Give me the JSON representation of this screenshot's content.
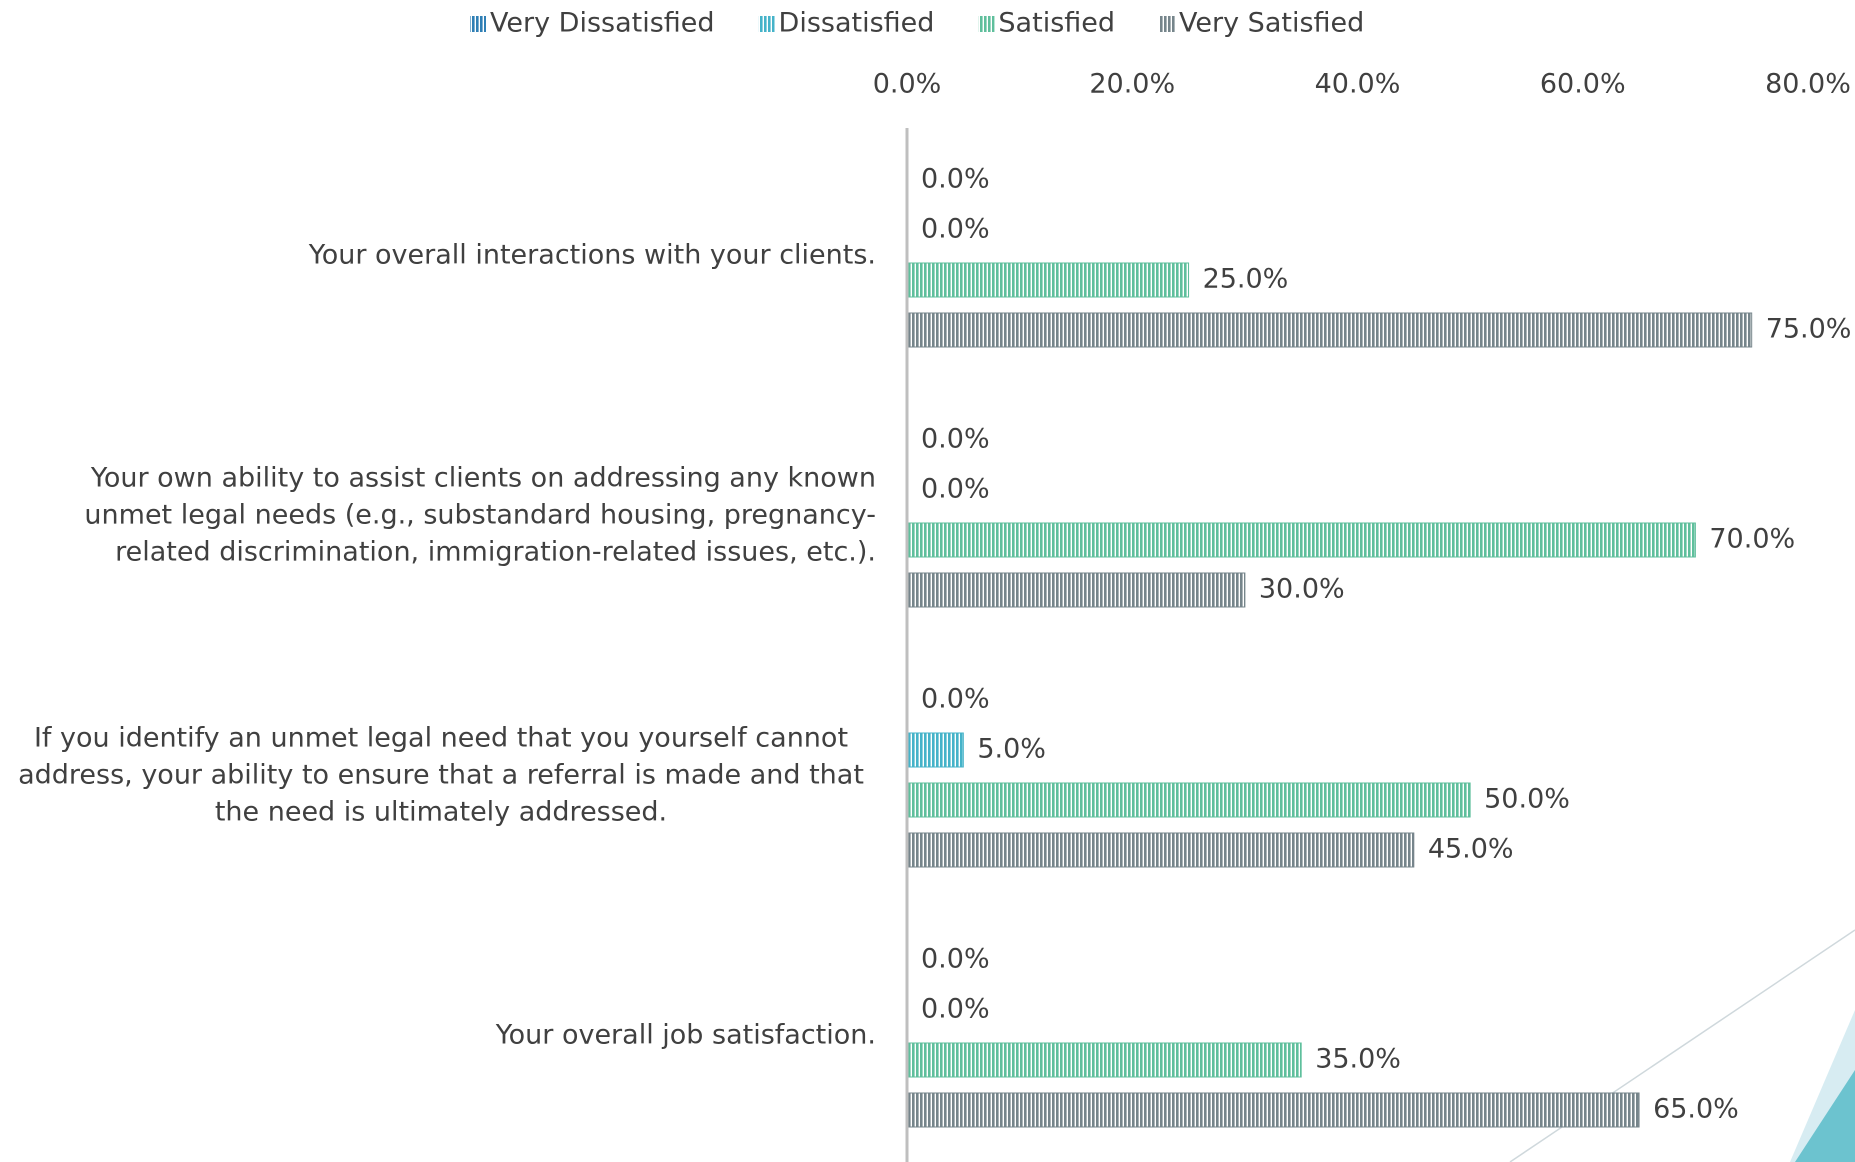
{
  "chart_data": {
    "type": "bar",
    "orientation": "horizontal",
    "categories": [
      "Your overall interactions with your clients.",
      "Your own ability to assist clients on addressing any known unmet legal needs (e.g., substandard housing, pregnancy-related discrimination, immigration-related issues, etc.).",
      "If you identify an unmet legal need that you yourself cannot address, your ability to ensure that a referral is made and that the need is ultimately addressed.",
      "Your overall job satisfaction."
    ],
    "series": [
      {
        "name": "Very Dissatisfied",
        "color": "#2f7fb5",
        "values": [
          0,
          0,
          0,
          0
        ],
        "value_labels": [
          "0.0%",
          "0.0%",
          "0.0%",
          "0.0%"
        ]
      },
      {
        "name": "Dissatisfied",
        "color": "#45b3c9",
        "values": [
          0,
          0,
          5,
          0
        ],
        "value_labels": [
          "0.0%",
          "0.0%",
          "5.0%",
          "0.0%"
        ]
      },
      {
        "name": "Satisfied",
        "color": "#5fbf9c",
        "values": [
          25,
          70,
          50,
          35
        ],
        "value_labels": [
          "25.0%",
          "70.0%",
          "50.0%",
          "35.0%"
        ]
      },
      {
        "name": "Very Satisfied",
        "color": "#76858b",
        "values": [
          75,
          30,
          45,
          65
        ],
        "value_labels": [
          "75.0%",
          "30.0%",
          "45.0%",
          "65.0%"
        ]
      }
    ],
    "xlim": [
      0,
      80
    ],
    "xticks": [
      {
        "value": 0,
        "label": "0.0%"
      },
      {
        "value": 20,
        "label": "20.0%"
      },
      {
        "value": 40,
        "label": "40.0%"
      },
      {
        "value": 60,
        "label": "60.0%"
      },
      {
        "value": 80,
        "label": "80.0%"
      }
    ],
    "legend": "top",
    "grid": false
  }
}
